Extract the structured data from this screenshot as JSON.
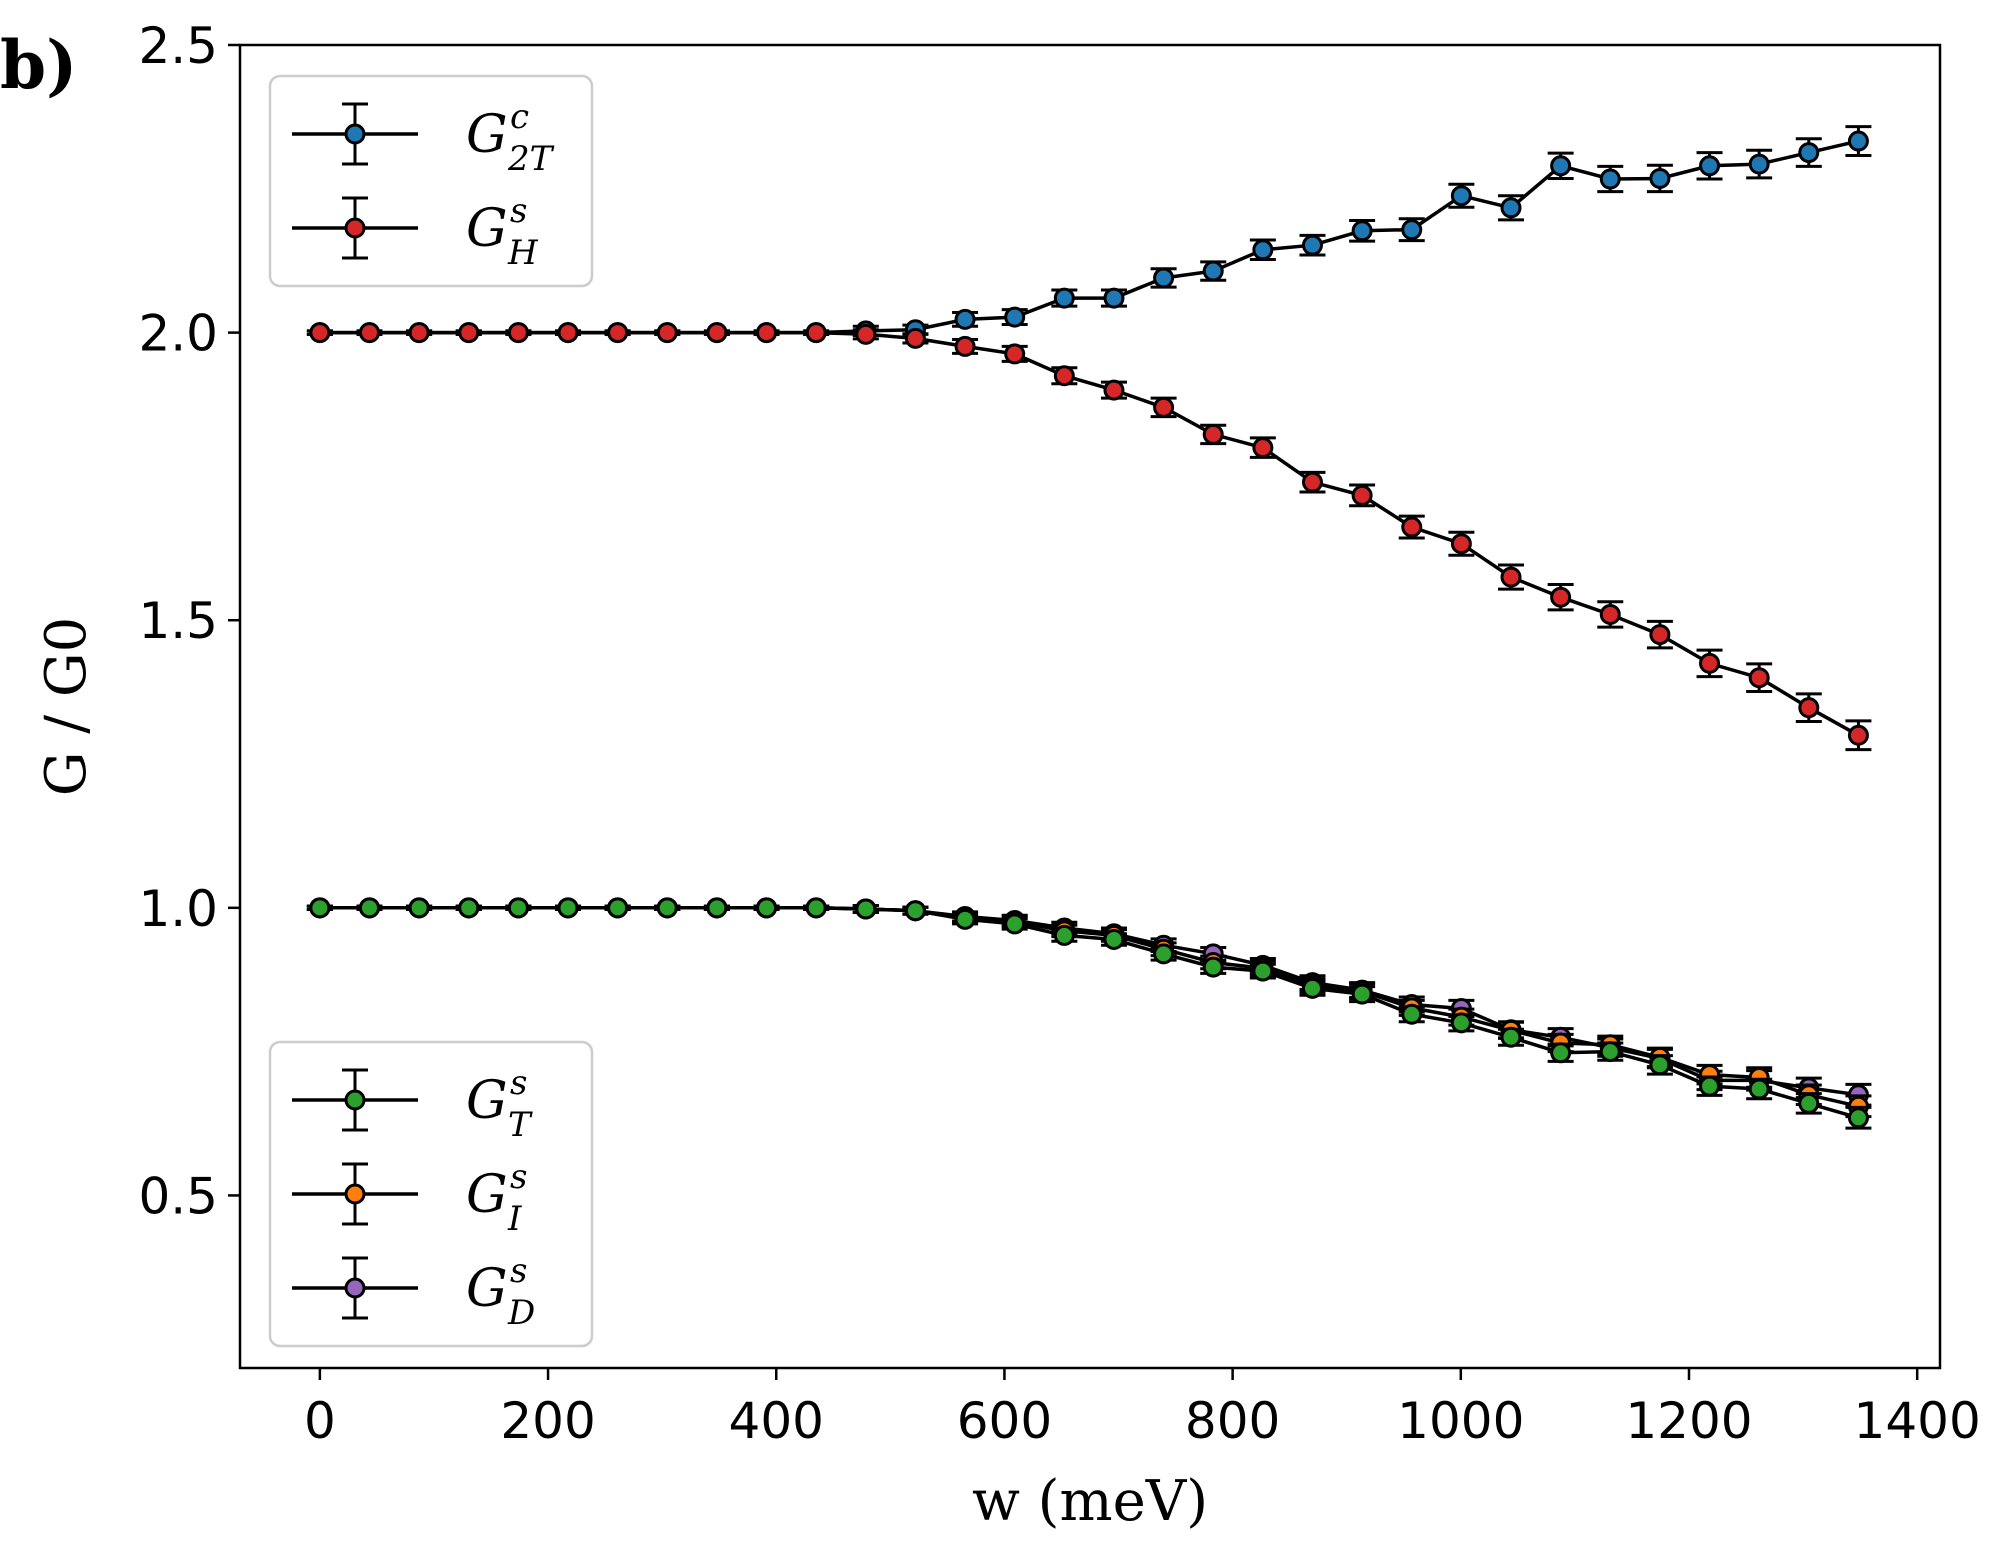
{
  "panel_label": "b)",
  "chart_data": {
    "type": "line",
    "xlabel": "w (meV)",
    "ylabel": "G / G0",
    "xlim": [
      -70,
      1420
    ],
    "ylim": [
      0.2,
      2.5
    ],
    "x_ticks": [
      0,
      200,
      400,
      600,
      800,
      1000,
      1200,
      1400
    ],
    "y_ticks": [
      0.5,
      1.0,
      1.5,
      2.0,
      2.5
    ],
    "x_tick_labels": [
      "0",
      "200",
      "400",
      "600",
      "800",
      "1000",
      "1200",
      "1400"
    ],
    "y_tick_labels": [
      "0.5",
      "1.0",
      "1.5",
      "2.0",
      "2.5"
    ],
    "legend_top_placement": "upper-left",
    "legend_bottom_placement": "lower-left",
    "x": [
      0,
      43.5,
      87,
      130.5,
      174,
      217.5,
      261,
      304.5,
      348,
      391.5,
      435,
      478.5,
      522,
      565.5,
      609,
      652.5,
      696,
      739.5,
      783,
      826.5,
      870,
      913.5,
      957,
      1000.5,
      1044,
      1087.5,
      1131,
      1174.5,
      1218,
      1261.5,
      1305,
      1348.5
    ],
    "series": [
      {
        "id": "G2Tc",
        "name": "G^c_2T",
        "legend": {
          "main": "G",
          "sup": "c",
          "sub": "2T"
        },
        "legend_group": "top",
        "color": "#1f77b4",
        "values": [
          2.0,
          2.0,
          2.0,
          2.0,
          2.0,
          2.0,
          2.0,
          2.0,
          2.0,
          2.0,
          2.0,
          2.003,
          2.005,
          2.023,
          2.027,
          2.06,
          2.06,
          2.095,
          2.107,
          2.144,
          2.152,
          2.177,
          2.179,
          2.238,
          2.217,
          2.29,
          2.267,
          2.268,
          2.29,
          2.293,
          2.313,
          2.333
        ],
        "errors": [
          0.003,
          0.003,
          0.003,
          0.003,
          0.003,
          0.003,
          0.003,
          0.003,
          0.003,
          0.003,
          0.003,
          0.008,
          0.008,
          0.012,
          0.013,
          0.014,
          0.014,
          0.016,
          0.016,
          0.017,
          0.017,
          0.018,
          0.019,
          0.02,
          0.021,
          0.022,
          0.022,
          0.023,
          0.023,
          0.024,
          0.024,
          0.025
        ]
      },
      {
        "id": "GHs",
        "name": "G^s_H",
        "legend": {
          "main": "G",
          "sup": "s",
          "sub": "H"
        },
        "legend_group": "top",
        "color": "#d62728",
        "values": [
          2.0,
          2.0,
          2.0,
          2.0,
          2.0,
          2.0,
          2.0,
          2.0,
          2.0,
          2.0,
          2.0,
          1.997,
          1.99,
          1.976,
          1.963,
          1.925,
          1.9,
          1.87,
          1.823,
          1.8,
          1.74,
          1.717,
          1.662,
          1.633,
          1.575,
          1.54,
          1.51,
          1.475,
          1.425,
          1.4,
          1.348,
          1.3
        ],
        "errors": [
          0.003,
          0.003,
          0.003,
          0.003,
          0.003,
          0.003,
          0.003,
          0.003,
          0.003,
          0.003,
          0.003,
          0.008,
          0.008,
          0.012,
          0.013,
          0.014,
          0.014,
          0.016,
          0.016,
          0.017,
          0.017,
          0.018,
          0.019,
          0.02,
          0.021,
          0.022,
          0.022,
          0.023,
          0.023,
          0.024,
          0.024,
          0.025
        ]
      },
      {
        "id": "GDs",
        "name": "G^s_D",
        "legend": {
          "main": "G",
          "sup": "s",
          "sub": "D"
        },
        "legend_group": "bottom",
        "color": "#9467bd",
        "values": [
          1.0,
          1.0,
          1.0,
          1.0,
          1.0,
          1.0,
          1.0,
          1.0,
          1.0,
          1.0,
          1.0,
          0.998,
          0.995,
          0.985,
          0.978,
          0.965,
          0.955,
          0.935,
          0.92,
          0.9,
          0.87,
          0.857,
          0.832,
          0.825,
          0.788,
          0.775,
          0.757,
          0.738,
          0.7,
          0.7,
          0.687,
          0.675
        ],
        "errors": [
          0.003,
          0.003,
          0.003,
          0.003,
          0.003,
          0.003,
          0.003,
          0.003,
          0.003,
          0.003,
          0.003,
          0.006,
          0.006,
          0.008,
          0.009,
          0.01,
          0.01,
          0.011,
          0.011,
          0.012,
          0.012,
          0.013,
          0.013,
          0.014,
          0.014,
          0.015,
          0.015,
          0.016,
          0.016,
          0.017,
          0.017,
          0.018
        ]
      },
      {
        "id": "GIs",
        "name": "G^s_I",
        "legend": {
          "main": "G",
          "sup": "s",
          "sub": "I"
        },
        "legend_group": "bottom",
        "color": "#ff7f0e",
        "values": [
          1.0,
          1.0,
          1.0,
          1.0,
          1.0,
          1.0,
          1.0,
          1.0,
          1.0,
          1.0,
          1.0,
          0.998,
          0.995,
          0.983,
          0.976,
          0.96,
          0.952,
          0.928,
          0.905,
          0.895,
          0.865,
          0.855,
          0.826,
          0.81,
          0.787,
          0.765,
          0.762,
          0.74,
          0.71,
          0.705,
          0.675,
          0.655
        ],
        "errors": [
          0.003,
          0.003,
          0.003,
          0.003,
          0.003,
          0.003,
          0.003,
          0.003,
          0.003,
          0.003,
          0.003,
          0.006,
          0.006,
          0.008,
          0.009,
          0.01,
          0.01,
          0.011,
          0.011,
          0.012,
          0.012,
          0.013,
          0.013,
          0.014,
          0.014,
          0.015,
          0.015,
          0.016,
          0.016,
          0.017,
          0.017,
          0.018
        ]
      },
      {
        "id": "GTs",
        "name": "G^s_T",
        "legend": {
          "main": "G",
          "sup": "s",
          "sub": "T"
        },
        "legend_group": "bottom",
        "color": "#2ca02c",
        "values": [
          1.0,
          1.0,
          1.0,
          1.0,
          1.0,
          1.0,
          1.0,
          1.0,
          1.0,
          1.0,
          1.0,
          0.998,
          0.995,
          0.98,
          0.972,
          0.952,
          0.945,
          0.92,
          0.897,
          0.89,
          0.86,
          0.85,
          0.815,
          0.8,
          0.775,
          0.748,
          0.75,
          0.727,
          0.69,
          0.685,
          0.66,
          0.635
        ],
        "errors": [
          0.003,
          0.003,
          0.003,
          0.003,
          0.003,
          0.003,
          0.003,
          0.003,
          0.003,
          0.003,
          0.003,
          0.006,
          0.006,
          0.008,
          0.009,
          0.01,
          0.01,
          0.011,
          0.011,
          0.012,
          0.012,
          0.013,
          0.013,
          0.014,
          0.014,
          0.015,
          0.015,
          0.016,
          0.016,
          0.017,
          0.017,
          0.018
        ]
      }
    ]
  }
}
